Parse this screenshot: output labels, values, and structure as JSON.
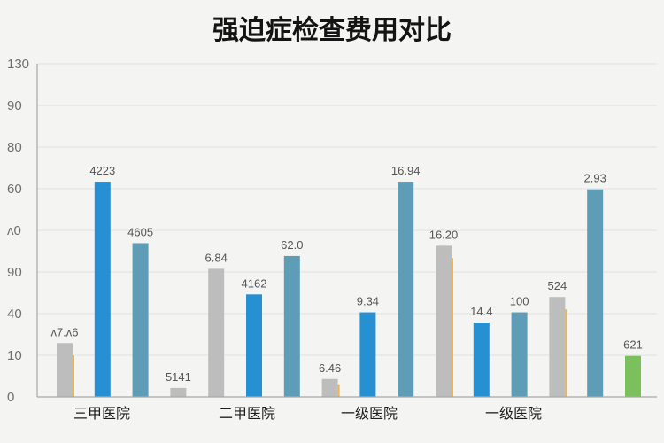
{
  "chart_data": {
    "type": "bar",
    "title": "强迫症检查费用对比",
    "xlabel": "",
    "ylabel": "",
    "ylim": [
      0,
      130
    ],
    "grid": true,
    "y_tick_labels": [
      "0",
      "10",
      "40",
      "90",
      "ʌ0",
      "60",
      "80",
      "90",
      "130"
    ],
    "category_labels": [
      "三甲医院",
      "二甲医院",
      "一级医院",
      "一级医院"
    ],
    "colors": {
      "gray": "#bdbdbd",
      "blue": "#2690d2",
      "teal": "#5f9cb5",
      "orange": "#e8b45c",
      "green": "#7cbf5d"
    },
    "bars": [
      {
        "value": 21,
        "color": "gray",
        "accent": true,
        "label": "ʌ7.ʌ6"
      },
      {
        "value": 84,
        "color": "blue",
        "label": "4223"
      },
      {
        "value": 60,
        "color": "teal",
        "label": "4605"
      },
      {
        "value": 3.5,
        "color": "gray",
        "label": "5141"
      },
      {
        "value": 50,
        "color": "gray",
        "label": "6.84"
      },
      {
        "value": 40,
        "color": "blue",
        "label": "4162"
      },
      {
        "value": 55,
        "color": "teal",
        "label": "62.0"
      },
      {
        "value": 7,
        "color": "gray",
        "accent": true,
        "label": "6.46"
      },
      {
        "value": 33,
        "color": "blue",
        "label": "9.34"
      },
      {
        "value": 84,
        "color": "teal",
        "label": "16.94"
      },
      {
        "value": 59,
        "color": "gray",
        "accent": true,
        "label": "16.20"
      },
      {
        "value": 29,
        "color": "blue",
        "label": "14.4"
      },
      {
        "value": 33,
        "color": "teal",
        "label": "100"
      },
      {
        "value": 39,
        "color": "gray",
        "accent": true,
        "label": "524"
      },
      {
        "value": 81,
        "color": "teal",
        "label": "2.93"
      },
      {
        "value": 16,
        "color": "green",
        "label": "621"
      }
    ]
  }
}
